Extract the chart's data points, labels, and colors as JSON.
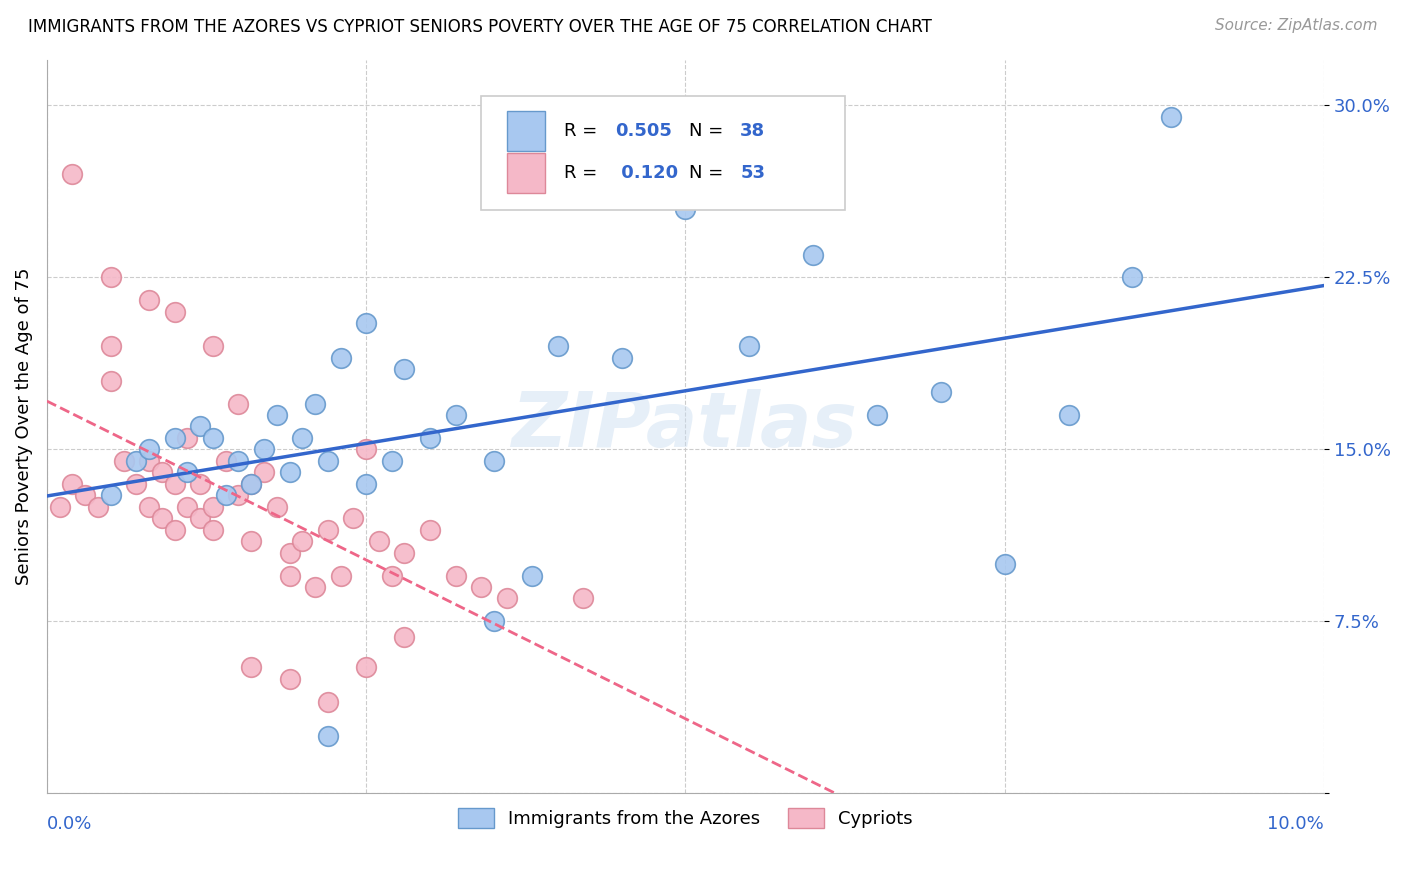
{
  "title": "IMMIGRANTS FROM THE AZORES VS CYPRIOT SENIORS POVERTY OVER THE AGE OF 75 CORRELATION CHART",
  "source": "Source: ZipAtlas.com",
  "ylabel": "Seniors Poverty Over the Age of 75",
  "xlim": [
    0.0,
    0.1
  ],
  "ylim": [
    0.0,
    0.32
  ],
  "yticks": [
    0.0,
    0.075,
    0.15,
    0.225,
    0.3
  ],
  "ytick_labels": [
    "",
    "7.5%",
    "15.0%",
    "22.5%",
    "30.0%"
  ],
  "xtick_positions": [
    0.0,
    0.025,
    0.05,
    0.075,
    0.1
  ],
  "azores_color": "#A8C8F0",
  "azores_edge": "#6699CC",
  "cypriot_color": "#F5B8C8",
  "cypriot_edge": "#DD8899",
  "line_azores_color": "#3366CC",
  "line_cypriot_color": "#EE6688",
  "legend_R_azores": "0.505",
  "legend_N_azores": "38",
  "legend_R_cypriot": "0.120",
  "legend_N_cypriot": "53",
  "watermark": "ZIPatlas",
  "azores_x": [
    0.005,
    0.007,
    0.008,
    0.01,
    0.011,
    0.012,
    0.013,
    0.014,
    0.015,
    0.016,
    0.017,
    0.018,
    0.019,
    0.02,
    0.021,
    0.022,
    0.023,
    0.025,
    0.027,
    0.028,
    0.03,
    0.032,
    0.035,
    0.038,
    0.04,
    0.045,
    0.05,
    0.055,
    0.06,
    0.065,
    0.07,
    0.075,
    0.08,
    0.085,
    0.088,
    0.025,
    0.035,
    0.022
  ],
  "azores_y": [
    0.13,
    0.145,
    0.15,
    0.155,
    0.14,
    0.16,
    0.155,
    0.13,
    0.145,
    0.135,
    0.15,
    0.165,
    0.14,
    0.155,
    0.17,
    0.145,
    0.19,
    0.205,
    0.145,
    0.185,
    0.155,
    0.165,
    0.145,
    0.095,
    0.195,
    0.19,
    0.255,
    0.195,
    0.235,
    0.165,
    0.175,
    0.1,
    0.165,
    0.225,
    0.295,
    0.135,
    0.075,
    0.025
  ],
  "cypriot_x": [
    0.001,
    0.002,
    0.003,
    0.004,
    0.005,
    0.005,
    0.006,
    0.007,
    0.008,
    0.008,
    0.009,
    0.009,
    0.01,
    0.01,
    0.011,
    0.011,
    0.012,
    0.012,
    0.013,
    0.013,
    0.014,
    0.015,
    0.015,
    0.016,
    0.016,
    0.017,
    0.018,
    0.019,
    0.019,
    0.02,
    0.021,
    0.022,
    0.023,
    0.024,
    0.025,
    0.026,
    0.027,
    0.028,
    0.03,
    0.032,
    0.034,
    0.036,
    0.002,
    0.005,
    0.008,
    0.01,
    0.013,
    0.016,
    0.019,
    0.022,
    0.025,
    0.028,
    0.042
  ],
  "cypriot_y": [
    0.125,
    0.135,
    0.13,
    0.125,
    0.18,
    0.195,
    0.145,
    0.135,
    0.145,
    0.125,
    0.14,
    0.12,
    0.135,
    0.115,
    0.125,
    0.155,
    0.135,
    0.12,
    0.125,
    0.115,
    0.145,
    0.17,
    0.13,
    0.135,
    0.11,
    0.14,
    0.125,
    0.105,
    0.095,
    0.11,
    0.09,
    0.115,
    0.095,
    0.12,
    0.15,
    0.11,
    0.095,
    0.105,
    0.115,
    0.095,
    0.09,
    0.085,
    0.27,
    0.225,
    0.215,
    0.21,
    0.195,
    0.055,
    0.05,
    0.04,
    0.055,
    0.068,
    0.085
  ]
}
